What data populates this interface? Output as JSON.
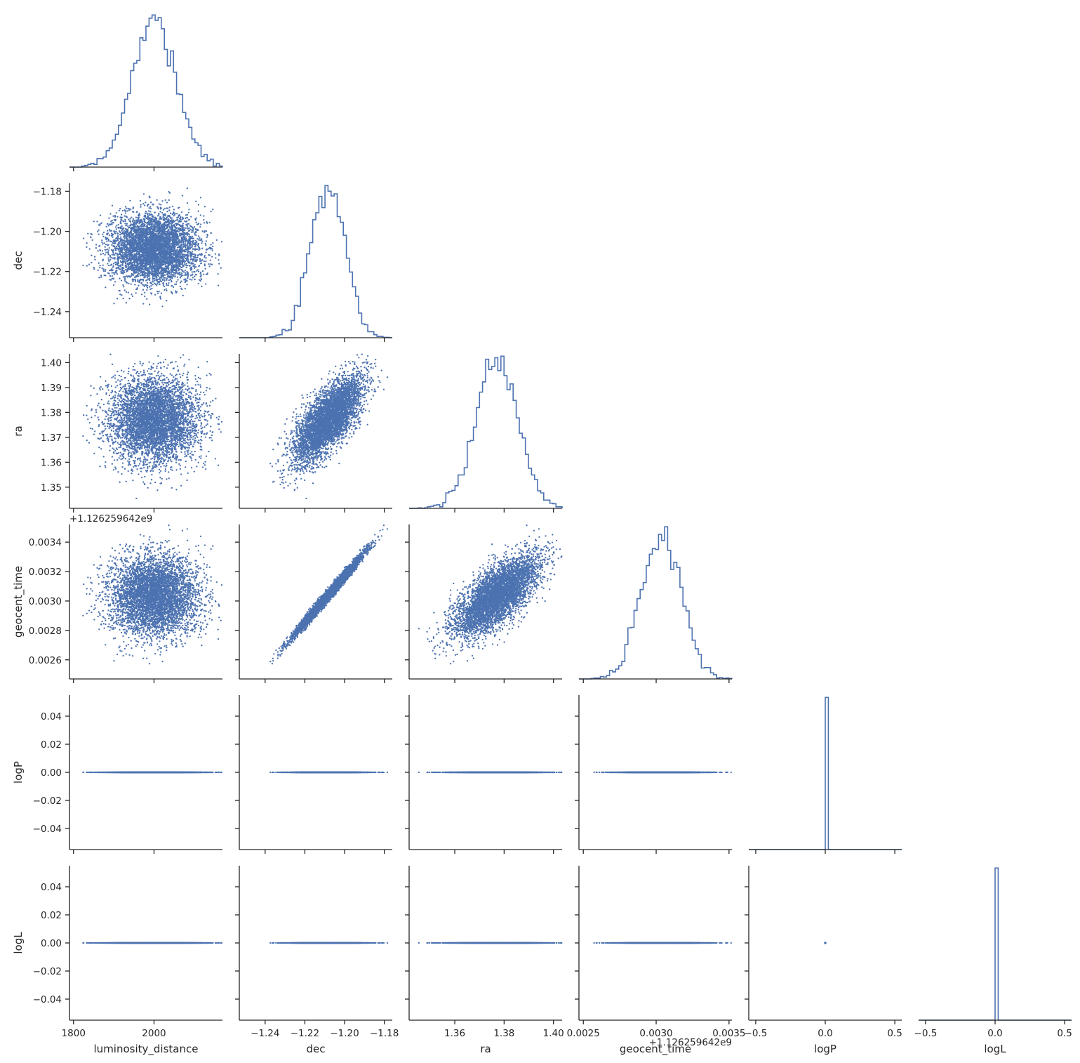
{
  "chart_data": {
    "type": "scatter",
    "subtype": "corner-pairplot",
    "grid": false,
    "legend": "none",
    "colors": {
      "series": "#4c72b0",
      "axis": "#262626"
    },
    "variables": [
      {
        "name": "luminosity_distance",
        "label": "luminosity_distance",
        "mean": 2000,
        "std": 55,
        "range": [
          1790,
          2170
        ],
        "ticks": [
          1800,
          2000
        ],
        "tick_labels": [
          "1800",
          "2000"
        ],
        "offset_label": ""
      },
      {
        "name": "dec",
        "label": "dec",
        "mean": -1.2085,
        "std": 0.0085,
        "range": [
          -1.253,
          -1.176
        ],
        "ticks": [
          -1.24,
          -1.22,
          -1.2,
          -1.18
        ],
        "tick_labels": [
          "−1.24",
          "−1.22",
          "−1.20",
          "−1.18"
        ],
        "offset_label": ""
      },
      {
        "name": "ra",
        "label": "ra",
        "mean": 1.3768,
        "std": 0.0085,
        "range": [
          1.3415,
          1.4035
        ],
        "ticks": [
          1.35,
          1.36,
          1.37,
          1.38,
          1.39,
          1.4
        ],
        "tick_labels": [
          "1.35",
          "1.36",
          "1.37",
          "1.38",
          "1.39",
          "1.40"
        ],
        "x_ticks": [
          1.36,
          1.38,
          1.4
        ],
        "x_tick_labels": [
          "1.36",
          "1.38",
          "1.40"
        ],
        "offset_label": ""
      },
      {
        "name": "geocent_time",
        "label": "geocent_time",
        "mean": 0.003035,
        "std": 0.000135,
        "range": [
          0.00247,
          0.00352
        ],
        "ticks": [
          0.0026,
          0.0028,
          0.003,
          0.0032,
          0.0034
        ],
        "tick_labels": [
          "0.0026",
          "0.0028",
          "0.0030",
          "0.0032",
          "0.0034"
        ],
        "x_ticks": [
          0.0025,
          0.003,
          0.0035
        ],
        "x_tick_labels": [
          "0.0025",
          "0.0030",
          "0.0035"
        ],
        "offset_label": "+1.126259642e9"
      },
      {
        "name": "logP",
        "label": "logP",
        "constant": 0,
        "range": [
          -0.055,
          0.055
        ],
        "x_range": [
          -0.55,
          0.55
        ],
        "ticks": [
          -0.04,
          -0.02,
          0,
          0.02,
          0.04
        ],
        "tick_labels": [
          "−0.04",
          "−0.02",
          "0.00",
          "0.02",
          "0.04"
        ],
        "x_ticks": [
          -0.5,
          0,
          0.5
        ],
        "x_tick_labels": [
          "−0.5",
          "0.0",
          "0.5"
        ],
        "offset_label": ""
      },
      {
        "name": "logL",
        "label": "logL",
        "constant": 0,
        "range": [
          -0.055,
          0.055
        ],
        "x_range": [
          -0.55,
          0.55
        ],
        "ticks": [
          -0.04,
          -0.02,
          0,
          0.02,
          0.04
        ],
        "tick_labels": [
          "−0.04",
          "−0.02",
          "0.00",
          "0.02",
          "0.04"
        ],
        "x_ticks": [
          -0.5,
          0,
          0.5
        ],
        "x_tick_labels": [
          "−0.5",
          "0.0",
          "0.5"
        ],
        "offset_label": ""
      }
    ],
    "correlations": [
      {
        "x": "dec",
        "y": "ra",
        "r": 0.7
      },
      {
        "x": "dec",
        "y": "geocent_time",
        "r": 0.99
      },
      {
        "x": "ra",
        "y": "geocent_time",
        "r": 0.7
      }
    ],
    "samples": 5000,
    "histogram_bins": 50,
    "diagonal": "step-histogram",
    "lower": "scatter",
    "upper": "hidden"
  }
}
